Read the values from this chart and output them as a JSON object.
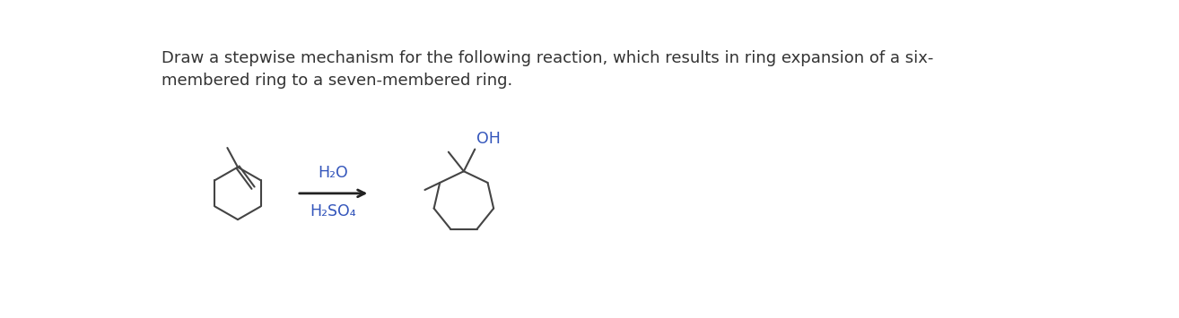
{
  "title_line1": "Draw a stepwise mechanism for the following reaction, which results in ring expansion of a six-",
  "title_line2": "membered ring to a seven-membered ring.",
  "reagent_top": "H₂O",
  "reagent_bot": "H₂SO₄",
  "oh_label": "OH",
  "bg_color": "#ffffff",
  "text_color": "#333333",
  "reagent_color": "#3355bb",
  "line_color": "#444444",
  "title_fontsize": 13.0,
  "reagent_fontsize": 12.5,
  "label_fontsize": 12.5
}
